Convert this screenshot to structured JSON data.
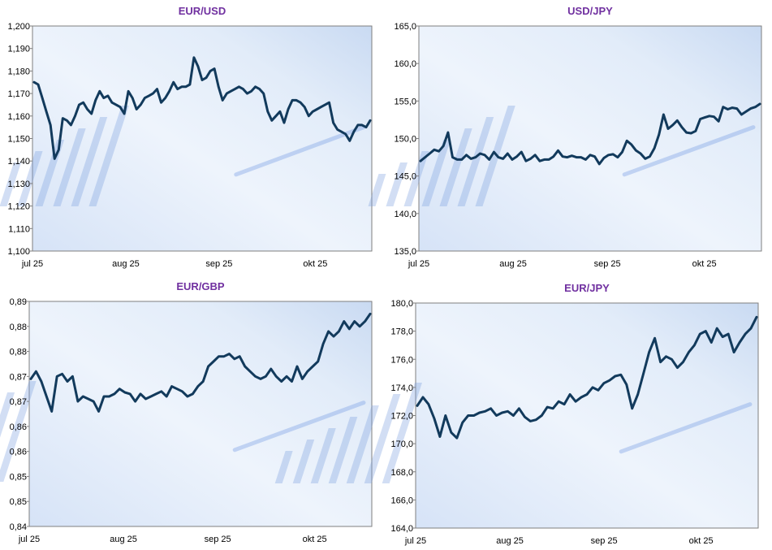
{
  "chart_data": [
    {
      "type": "line",
      "title": "EUR/USD",
      "x_labels": [
        "jul 25",
        "aug 25",
        "sep 25",
        "okt 25"
      ],
      "y_tick_labels": [
        "1,100",
        "1,110",
        "1,120",
        "1,130",
        "1,140",
        "1,150",
        "1,160",
        "1,170",
        "1,180",
        "1,190",
        "1,200"
      ],
      "ylim": [
        1.1,
        1.2
      ],
      "xlim": [
        0,
        120
      ],
      "x_tick_positions": [
        0,
        33,
        66,
        100
      ],
      "values": [
        1.175,
        1.174,
        1.168,
        1.162,
        1.156,
        1.141,
        1.145,
        1.159,
        1.158,
        1.156,
        1.16,
        1.165,
        1.166,
        1.163,
        1.161,
        1.167,
        1.171,
        1.168,
        1.169,
        1.166,
        1.165,
        1.164,
        1.161,
        1.171,
        1.168,
        1.163,
        1.165,
        1.168,
        1.169,
        1.17,
        1.172,
        1.166,
        1.168,
        1.171,
        1.175,
        1.172,
        1.173,
        1.173,
        1.174,
        1.186,
        1.182,
        1.176,
        1.177,
        1.18,
        1.181,
        1.173,
        1.167,
        1.17,
        1.171,
        1.172,
        1.173,
        1.172,
        1.17,
        1.171,
        1.173,
        1.172,
        1.17,
        1.162,
        1.158,
        1.16,
        1.162,
        1.157,
        1.163,
        1.167,
        1.167,
        1.166,
        1.164,
        1.16,
        1.162,
        1.163,
        1.164,
        1.165,
        1.166,
        1.157,
        1.154,
        1.153,
        1.152,
        1.149,
        1.153,
        1.156,
        1.156,
        1.155,
        1.158
      ]
    },
    {
      "type": "line",
      "title": "USD/JPY",
      "x_labels": [
        "jul 25",
        "aug 25",
        "sep 25",
        "okt 25"
      ],
      "y_tick_labels": [
        "135,0",
        "140,0",
        "145,0",
        "150,0",
        "155,0",
        "160,0",
        "165,0"
      ],
      "ylim": [
        135.0,
        165.0
      ],
      "xlim": [
        0,
        120
      ],
      "x_tick_positions": [
        0,
        33,
        66,
        100
      ],
      "values": [
        147.0,
        147.5,
        148.0,
        148.5,
        148.3,
        149.0,
        150.8,
        147.5,
        147.2,
        147.2,
        147.8,
        147.3,
        147.5,
        148.0,
        147.8,
        147.2,
        148.2,
        147.5,
        147.3,
        148.0,
        147.2,
        147.6,
        148.2,
        147.0,
        147.3,
        147.8,
        147.0,
        147.2,
        147.2,
        147.6,
        148.4,
        147.6,
        147.5,
        147.7,
        147.5,
        147.5,
        147.2,
        147.8,
        147.6,
        146.6,
        147.4,
        147.8,
        147.9,
        147.5,
        148.2,
        149.7,
        149.2,
        148.4,
        148.0,
        147.3,
        147.6,
        148.7,
        150.5,
        153.2,
        151.3,
        151.8,
        152.4,
        151.5,
        150.8,
        150.7,
        151.0,
        152.6,
        152.8,
        153.0,
        152.9,
        152.3,
        154.2,
        153.9,
        154.1,
        154.0,
        153.2,
        153.6,
        154.0,
        154.2,
        154.6
      ]
    },
    {
      "type": "line",
      "title": "EUR/GBP",
      "x_labels": [
        "jul 25",
        "aug 25",
        "sep 25",
        "okt 25"
      ],
      "y_tick_labels": [
        "0,84",
        "0,85",
        "0,85",
        "0,86",
        "0,86",
        "0,87",
        "0,87",
        "0,88",
        "0,88",
        "0,89"
      ],
      "ylim": [
        0.84,
        0.885
      ],
      "xlim": [
        0,
        120
      ],
      "x_tick_positions": [
        0,
        33,
        66,
        100
      ],
      "values": [
        0.8695,
        0.871,
        0.869,
        0.866,
        0.863,
        0.87,
        0.8705,
        0.869,
        0.87,
        0.865,
        0.866,
        0.8655,
        0.865,
        0.863,
        0.866,
        0.866,
        0.8665,
        0.8675,
        0.8668,
        0.8665,
        0.865,
        0.8665,
        0.8655,
        0.866,
        0.8665,
        0.867,
        0.866,
        0.868,
        0.8675,
        0.867,
        0.866,
        0.8665,
        0.868,
        0.869,
        0.872,
        0.873,
        0.874,
        0.874,
        0.8745,
        0.8735,
        0.874,
        0.872,
        0.871,
        0.87,
        0.8695,
        0.87,
        0.8715,
        0.87,
        0.869,
        0.87,
        0.869,
        0.872,
        0.8695,
        0.871,
        0.872,
        0.873,
        0.8765,
        0.879,
        0.878,
        0.879,
        0.881,
        0.8795,
        0.881,
        0.88,
        0.881,
        0.8825
      ]
    },
    {
      "type": "line",
      "title": "EUR/JPY",
      "x_labels": [
        "jul 25",
        "aug 25",
        "sep 25",
        "okt 25"
      ],
      "y_tick_labels": [
        "164,0",
        "166,0",
        "168,0",
        "170,0",
        "172,0",
        "174,0",
        "176,0",
        "178,0",
        "180,0"
      ],
      "ylim": [
        164.0,
        180.0
      ],
      "xlim": [
        0,
        120
      ],
      "x_tick_positions": [
        0,
        33,
        66,
        100
      ],
      "values": [
        172.7,
        173.3,
        172.8,
        171.8,
        170.5,
        172.0,
        170.8,
        170.4,
        171.5,
        172.0,
        172.0,
        172.2,
        172.3,
        172.5,
        172.0,
        172.2,
        172.3,
        172.0,
        172.5,
        171.9,
        171.6,
        171.7,
        172.0,
        172.6,
        172.5,
        173.0,
        172.8,
        173.5,
        173.0,
        173.3,
        173.5,
        174.0,
        173.8,
        174.3,
        174.5,
        174.8,
        174.9,
        174.2,
        172.5,
        173.5,
        175.0,
        176.5,
        177.5,
        175.8,
        176.2,
        176.0,
        175.4,
        175.8,
        176.5,
        177.0,
        177.8,
        178.0,
        177.2,
        178.2,
        177.6,
        177.8,
        176.5,
        177.2,
        177.8,
        178.2,
        179.0
      ]
    }
  ]
}
